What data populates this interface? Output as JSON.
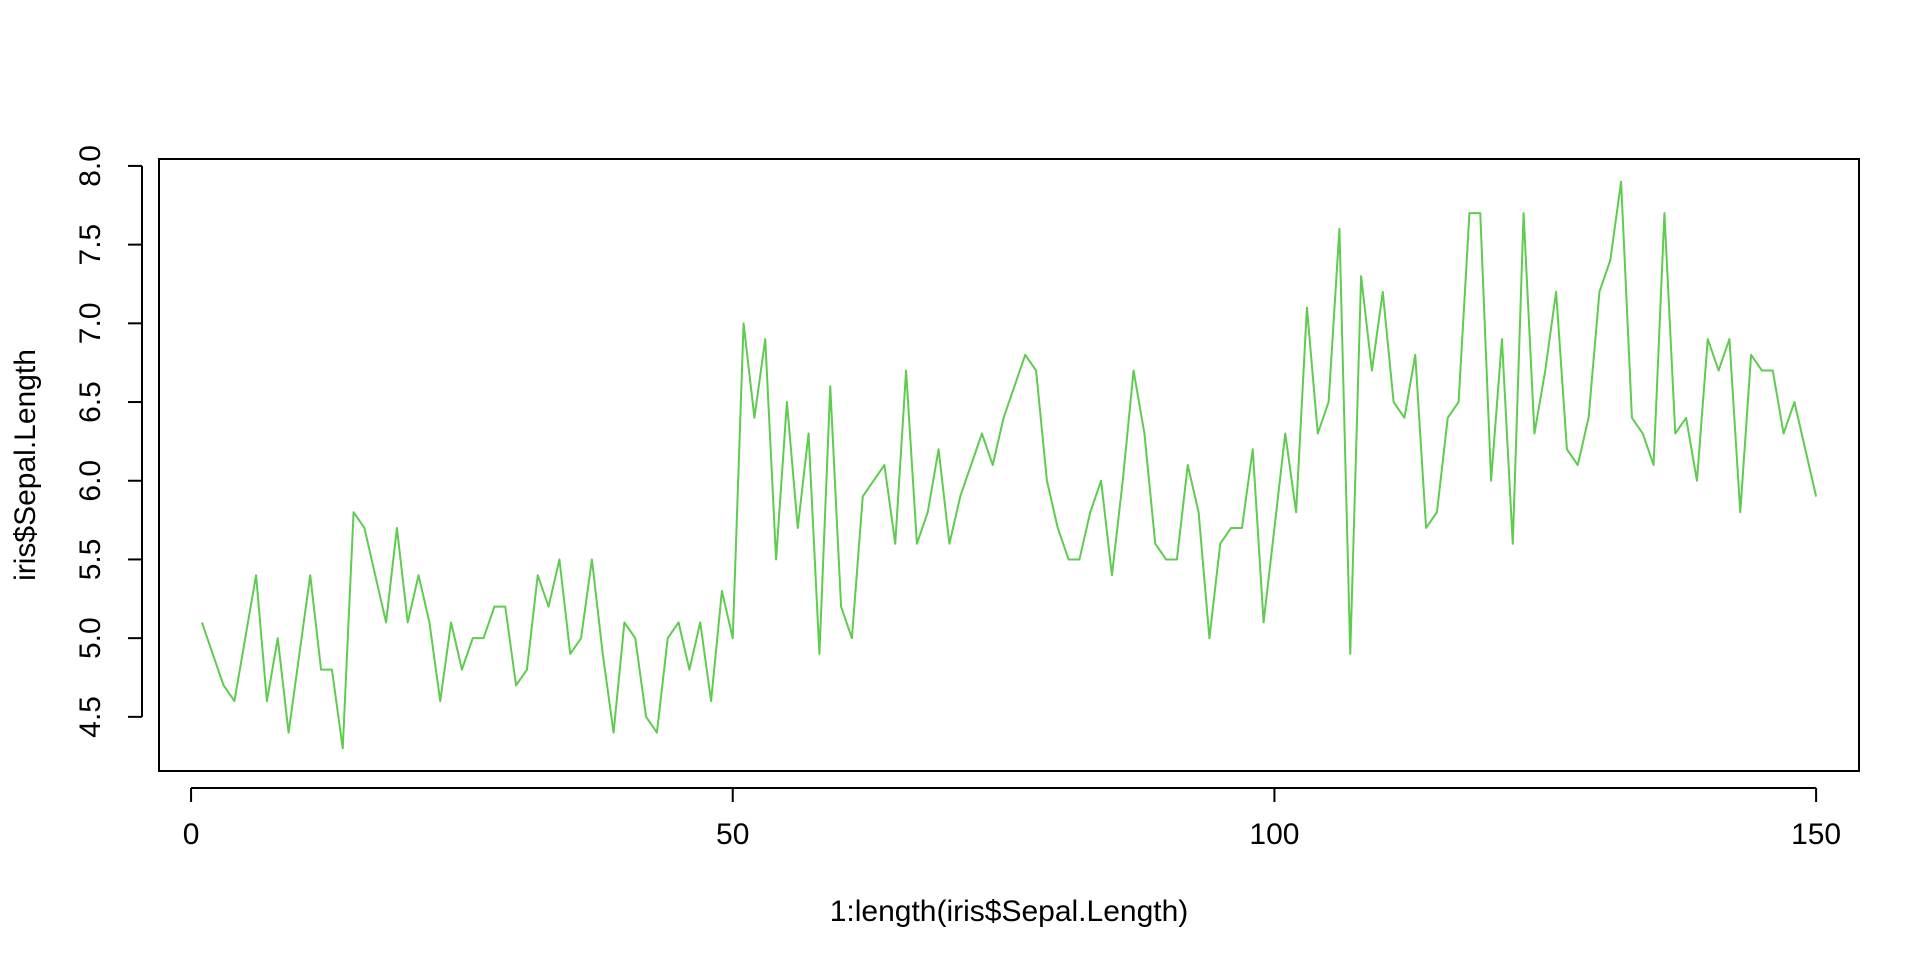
{
  "chart_data": {
    "type": "line",
    "title": "",
    "xlabel": "1:length(iris$Sepal.Length)",
    "ylabel": "iris$Sepal.Length",
    "xlim": [
      -2.96,
      153.96
    ],
    "ylim": [
      4.156,
      8.044
    ],
    "xticks": [
      0,
      50,
      100,
      150
    ],
    "yticks": [
      4.5,
      5.0,
      5.5,
      6.0,
      6.5,
      7.0,
      7.5,
      8.0
    ],
    "xtick_labels": [
      "0",
      "50",
      "100",
      "150"
    ],
    "ytick_labels": [
      "4.5",
      "5.0",
      "5.5",
      "6.0",
      "6.5",
      "7.0",
      "7.5",
      "8.0"
    ],
    "grid": false,
    "line_color": "#5ECC4F",
    "series": [
      {
        "values": [
          5.1,
          4.9,
          4.7,
          4.6,
          5.0,
          5.4,
          4.6,
          5.0,
          4.4,
          4.9,
          5.4,
          4.8,
          4.8,
          4.3,
          5.8,
          5.7,
          5.4,
          5.1,
          5.7,
          5.1,
          5.4,
          5.1,
          4.6,
          5.1,
          4.8,
          5.0,
          5.0,
          5.2,
          5.2,
          4.7,
          4.8,
          5.4,
          5.2,
          5.5,
          4.9,
          5.0,
          5.5,
          4.9,
          4.4,
          5.1,
          5.0,
          4.5,
          4.4,
          5.0,
          5.1,
          4.8,
          5.1,
          4.6,
          5.3,
          5.0,
          7.0,
          6.4,
          6.9,
          5.5,
          6.5,
          5.7,
          6.3,
          4.9,
          6.6,
          5.2,
          5.0,
          5.9,
          6.0,
          6.1,
          5.6,
          6.7,
          5.6,
          5.8,
          6.2,
          5.6,
          5.9,
          6.1,
          6.3,
          6.1,
          6.4,
          6.6,
          6.8,
          6.7,
          6.0,
          5.7,
          5.5,
          5.5,
          5.8,
          6.0,
          5.4,
          6.0,
          6.7,
          6.3,
          5.6,
          5.5,
          5.5,
          6.1,
          5.8,
          5.0,
          5.6,
          5.7,
          5.7,
          6.2,
          5.1,
          5.7,
          6.3,
          5.8,
          7.1,
          6.3,
          6.5,
          7.6,
          4.9,
          7.3,
          6.7,
          7.2,
          6.5,
          6.4,
          6.8,
          5.7,
          5.8,
          6.4,
          6.5,
          7.7,
          7.7,
          6.0,
          6.9,
          5.6,
          7.7,
          6.3,
          6.7,
          7.2,
          6.2,
          6.1,
          6.4,
          7.2,
          7.4,
          7.9,
          6.4,
          6.3,
          6.1,
          7.7,
          6.3,
          6.4,
          6.0,
          6.9,
          6.7,
          6.9,
          5.8,
          6.8,
          6.7,
          6.7,
          6.3,
          6.5,
          6.2,
          5.9
        ]
      }
    ]
  }
}
